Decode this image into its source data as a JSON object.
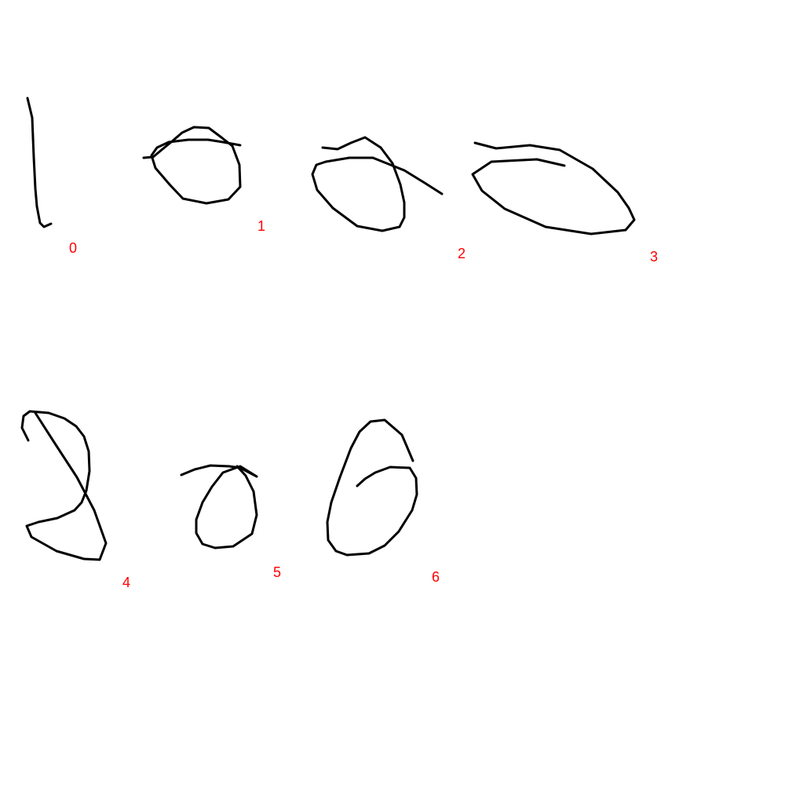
{
  "ink_color": "#000000",
  "label_color": "#ff0000",
  "strokes": [
    {
      "label": "0"
    },
    {
      "label": "1"
    },
    {
      "label": "2"
    },
    {
      "label": "3"
    },
    {
      "label": "4"
    },
    {
      "label": "5"
    },
    {
      "label": "6"
    }
  ]
}
